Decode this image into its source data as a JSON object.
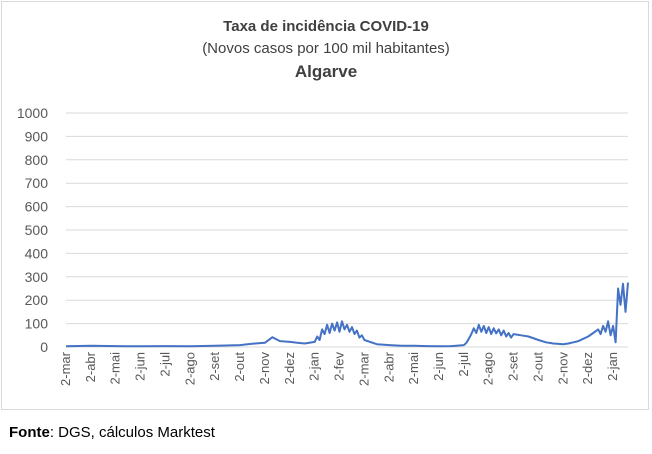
{
  "chart_data": {
    "type": "line",
    "title": "Taxa de incidência COVID-19",
    "subtitle": "(Novos casos por 100 mil habitantes)",
    "region": "Algarve",
    "xlabel": "",
    "ylabel": "",
    "ylim": [
      0,
      1000
    ],
    "yticks": [
      "0",
      "100",
      "200",
      "300",
      "400",
      "500",
      "600",
      "700",
      "800",
      "900",
      "1000"
    ],
    "xticks": [
      "2-mar",
      "2-abr",
      "2-mai",
      "2-jun",
      "2-jul",
      "2-ago",
      "2-set",
      "2-out",
      "2-nov",
      "2-dez",
      "2-jan",
      "2-fev",
      "2-mar",
      "2-abr",
      "2-mai",
      "2-jun",
      "2-jul",
      "2-ago",
      "2-set",
      "2-out",
      "2-nov",
      "2-dez",
      "2-jan"
    ],
    "grid": true,
    "legend": "none",
    "color": "#4472c4",
    "series": [
      {
        "x": [
          0,
          1,
          2,
          3,
          4,
          5,
          6,
          7,
          7.3,
          7.6,
          8,
          8.3,
          8.6,
          9,
          9.3,
          9.6,
          10,
          10.1,
          10.2,
          10.3,
          10.4,
          10.5,
          10.6,
          10.7,
          10.8,
          10.9,
          11,
          11.1,
          11.2,
          11.3,
          11.4,
          11.5,
          11.6,
          11.7,
          11.8,
          11.9,
          12,
          12.5,
          13,
          13.5,
          14,
          14.5,
          15,
          15.5,
          16,
          16.1,
          16.2,
          16.3,
          16.4,
          16.5,
          16.6,
          16.7,
          16.8,
          16.9,
          17,
          17.1,
          17.2,
          17.3,
          17.4,
          17.5,
          17.6,
          17.7,
          17.8,
          17.9,
          18,
          18.3,
          18.6,
          19,
          19.3,
          19.6,
          20,
          20.2,
          20.4,
          20.6,
          20.8,
          21,
          21.2,
          21.4,
          21.5,
          21.6,
          21.7,
          21.8,
          21.9,
          22,
          22.1,
          22.2,
          22.3,
          22.4,
          22.5,
          22.6
        ],
        "values": [
          3,
          5,
          4,
          3,
          4,
          3,
          5,
          8,
          12,
          15,
          18,
          42,
          25,
          22,
          18,
          15,
          22,
          45,
          30,
          75,
          55,
          95,
          60,
          100,
          70,
          105,
          65,
          110,
          75,
          95,
          65,
          85,
          55,
          70,
          40,
          50,
          30,
          12,
          8,
          5,
          5,
          4,
          3,
          4,
          8,
          18,
          35,
          55,
          80,
          60,
          95,
          65,
          90,
          60,
          85,
          55,
          80,
          58,
          75,
          50,
          70,
          45,
          60,
          40,
          55,
          50,
          45,
          30,
          20,
          15,
          12,
          15,
          20,
          25,
          35,
          45,
          60,
          75,
          55,
          90,
          65,
          110,
          50,
          90,
          20,
          250,
          180,
          270,
          150,
          275
        ]
      }
    ]
  },
  "source": {
    "label": "Fonte",
    "text": ": DGS, cálculos Marktest"
  }
}
